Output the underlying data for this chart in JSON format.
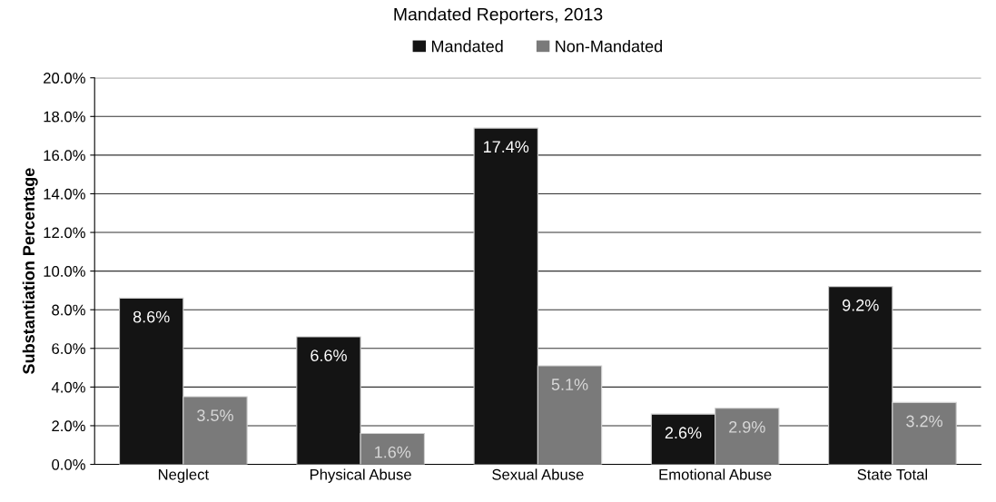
{
  "chart_data": {
    "type": "bar",
    "title": "Mandated Reporters, 2013",
    "ylabel": "Substantiation Percentage",
    "categories": [
      "Neglect",
      "Physical Abuse",
      "Sexual Abuse",
      "Emotional Abuse",
      "State Total"
    ],
    "series": [
      {
        "name": "Mandated",
        "color": "#141414",
        "values": [
          8.6,
          6.6,
          17.4,
          2.6,
          9.2
        ],
        "value_labels": [
          "8.6%",
          "6.6%",
          "17.4%",
          "2.6%",
          "9.2%"
        ]
      },
      {
        "name": "Non-Mandated",
        "color": "#7a7a7a",
        "values": [
          3.5,
          1.6,
          5.1,
          2.9,
          3.2
        ],
        "value_labels": [
          "3.5%",
          "1.6%",
          "5.1%",
          "2.9%",
          "3.2%"
        ]
      }
    ],
    "ylim": [
      0,
      20
    ],
    "yticks": [
      {
        "value": 0,
        "label": "0.0%"
      },
      {
        "value": 2,
        "label": "2.0%"
      },
      {
        "value": 4,
        "label": "4.0%"
      },
      {
        "value": 6,
        "label": "6.0%"
      },
      {
        "value": 8,
        "label": "8.0%"
      },
      {
        "value": 10,
        "label": "10.0%"
      },
      {
        "value": 12,
        "label": "12.0%"
      },
      {
        "value": 14,
        "label": "14.0%"
      },
      {
        "value": 16,
        "label": "16.0%"
      },
      {
        "value": 18,
        "label": "18.0%"
      },
      {
        "value": 20,
        "label": "20.0%"
      }
    ],
    "grid": "y",
    "legend": "top"
  }
}
